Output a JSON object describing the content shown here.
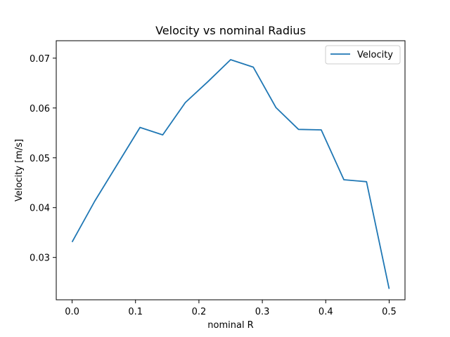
{
  "chart_data": {
    "type": "line",
    "title": "Velocity vs nominal Radius",
    "xlabel": "nominal R",
    "ylabel": "Velocity [m/s]",
    "xlim": [
      -0.025,
      0.525
    ],
    "ylim": [
      0.0215,
      0.0735
    ],
    "xticks": [
      0.0,
      0.1,
      0.2,
      0.3,
      0.4,
      0.5
    ],
    "xtick_labels": [
      "0.0",
      "0.1",
      "0.2",
      "0.3",
      "0.4",
      "0.5"
    ],
    "yticks": [
      0.03,
      0.04,
      0.05,
      0.06,
      0.07
    ],
    "ytick_labels": [
      "0.03",
      "0.04",
      "0.05",
      "0.06",
      "0.07"
    ],
    "grid": false,
    "legend": {
      "position": "upper right",
      "entries": [
        "Velocity"
      ]
    },
    "series": [
      {
        "name": "Velocity",
        "color": "#1f77b4",
        "x": [
          0.0,
          0.0357,
          0.0714,
          0.1071,
          0.1429,
          0.1786,
          0.2143,
          0.25,
          0.2857,
          0.3214,
          0.3571,
          0.3929,
          0.4286,
          0.4643,
          0.5
        ],
        "y": [
          0.0331,
          0.0413,
          0.0487,
          0.0561,
          0.0546,
          0.0611,
          0.0653,
          0.0697,
          0.0682,
          0.0601,
          0.0557,
          0.0556,
          0.0456,
          0.0452,
          0.0237
        ]
      }
    ]
  }
}
